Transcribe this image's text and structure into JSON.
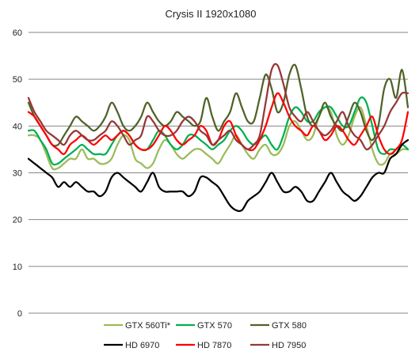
{
  "chart_data": {
    "type": "line",
    "title": "Crysis II 1920x1080",
    "xlabel": "",
    "ylabel": "",
    "ylim": [
      0,
      60
    ],
    "yticks": [
      "0",
      "10",
      "20",
      "30",
      "40",
      "50",
      "60"
    ],
    "grid": true,
    "legend": "bottom",
    "x": [
      0,
      1,
      2,
      3,
      4,
      5,
      6,
      7,
      8,
      9,
      10,
      11,
      12,
      13,
      14,
      15,
      16,
      17,
      18,
      19,
      20,
      21,
      22,
      23,
      24,
      25,
      26,
      27,
      28,
      29,
      30,
      31,
      32,
      33,
      34,
      35,
      36,
      37,
      38,
      39,
      40,
      41,
      42,
      43,
      44,
      45,
      46,
      47,
      48,
      49,
      50,
      51,
      52,
      53,
      54,
      55,
      56,
      57,
      58,
      59,
      60,
      61,
      62,
      63,
      64
    ],
    "series": [
      {
        "name": "GTX 560Ti*",
        "color": "#9bbb59",
        "values": [
          38,
          38,
          37,
          34,
          31,
          31,
          32,
          33,
          33,
          35,
          33,
          33,
          32,
          32,
          33,
          36,
          38,
          37,
          33,
          32,
          31,
          32,
          35,
          37,
          36,
          34,
          33,
          34,
          35,
          35,
          34,
          33,
          32,
          34,
          36,
          38,
          36,
          34,
          33,
          35,
          36,
          34,
          34,
          36,
          40,
          41,
          39,
          37,
          38,
          42,
          44,
          43,
          38,
          36,
          38,
          42,
          44,
          40,
          35,
          32,
          32,
          34,
          34,
          35,
          35
        ]
      },
      {
        "name": "GTX 570",
        "color": "#00b050",
        "values": [
          39,
          39,
          37,
          35,
          32,
          32,
          33,
          34,
          35,
          36,
          35,
          34,
          34,
          34,
          36,
          38,
          39,
          38,
          36,
          35,
          35,
          37,
          39,
          38,
          36,
          35,
          36,
          38,
          38,
          37,
          36,
          35,
          36,
          37,
          39,
          40,
          39,
          37,
          36,
          37,
          38,
          36,
          35,
          38,
          42,
          44,
          43,
          41,
          41,
          43,
          44,
          44,
          42,
          40,
          40,
          43,
          46,
          45,
          40,
          35,
          34,
          35,
          35,
          36,
          35
        ]
      },
      {
        "name": "GTX 580",
        "color": "#4f6228",
        "values": [
          45,
          42,
          40,
          38,
          36,
          36,
          38,
          40,
          42,
          41,
          40,
          39,
          40,
          42,
          45,
          43,
          40,
          39,
          40,
          42,
          45,
          43,
          41,
          40,
          41,
          43,
          42,
          41,
          40,
          41,
          46,
          42,
          39,
          41,
          43,
          47,
          44,
          41,
          41,
          46,
          51,
          48,
          43,
          45,
          51,
          53,
          48,
          42,
          40,
          42,
          45,
          42,
          40,
          39,
          42,
          45,
          43,
          39,
          37,
          40,
          48,
          50,
          46,
          52,
          44
        ]
      },
      {
        "name": "HD 6970",
        "color": "#000000",
        "values": [
          33,
          32,
          31,
          30,
          29,
          27,
          28,
          27,
          28,
          27,
          26,
          26,
          25,
          26,
          29,
          30,
          29,
          28,
          27,
          26,
          28,
          30,
          27,
          26,
          26,
          26,
          26,
          25,
          26,
          29,
          29,
          28,
          27,
          25,
          23,
          22,
          22,
          24,
          25,
          26,
          28,
          30,
          28,
          26,
          26,
          27,
          26,
          24,
          24,
          26,
          28,
          30,
          28,
          26,
          25,
          24,
          25,
          27,
          29,
          30,
          30,
          33,
          34,
          36,
          37
        ]
      },
      {
        "name": "HD 7870",
        "color": "#ff0000",
        "values": [
          43,
          42,
          40,
          38,
          36,
          35,
          34,
          36,
          37,
          38,
          37,
          36,
          37,
          38,
          37,
          38,
          39,
          38,
          36,
          35,
          35,
          36,
          38,
          40,
          39,
          37,
          36,
          37,
          38,
          40,
          39,
          36,
          37,
          40,
          41,
          38,
          36,
          35,
          35,
          37,
          40,
          44,
          47,
          45,
          42,
          40,
          39,
          38,
          40,
          39,
          37,
          38,
          40,
          39,
          37,
          36,
          38,
          40,
          42,
          38,
          35,
          34,
          35,
          37,
          43
        ]
      },
      {
        "name": "HD 7950",
        "color": "#953735",
        "values": [
          46,
          43,
          41,
          39,
          38,
          37,
          36,
          38,
          39,
          38,
          37,
          37,
          38,
          39,
          41,
          40,
          38,
          36,
          37,
          38,
          42,
          41,
          39,
          38,
          38,
          39,
          41,
          42,
          41,
          39,
          38,
          36,
          37,
          38,
          39,
          37,
          36,
          35,
          36,
          38,
          45,
          52,
          53,
          49,
          44,
          42,
          41,
          43,
          41,
          39,
          38,
          39,
          41,
          43,
          40,
          38,
          37,
          35,
          36,
          38,
          40,
          43,
          45,
          47,
          47
        ]
      }
    ]
  }
}
